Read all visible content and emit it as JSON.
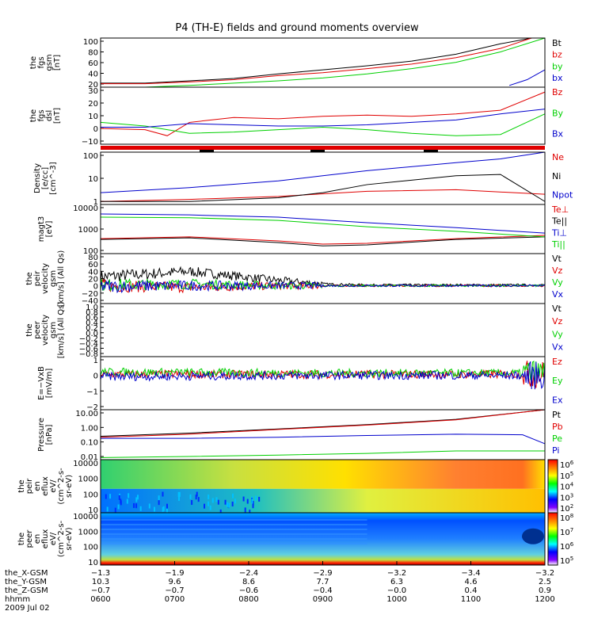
{
  "title": "P4 (TH-E) fields and ground moments overview",
  "colors": {
    "black": "#000000",
    "red": "#e00000",
    "green": "#00d000",
    "blue": "#0000cc"
  },
  "chart_data": [
    {
      "type": "line",
      "id": "fgs_gsm",
      "ylabel": [
        "the",
        "fgs",
        "gsm",
        "[nT]"
      ],
      "yticks": [
        "100",
        "80",
        "60",
        "40",
        "20"
      ],
      "ylim": [
        15,
        100
      ],
      "series": [
        {
          "name": "Bt",
          "color": "black",
          "x": [
            0,
            0.1,
            0.2,
            0.3,
            0.4,
            0.5,
            0.6,
            0.7,
            0.8,
            0.9,
            0.97,
            1
          ],
          "y": [
            22,
            22,
            26,
            30,
            38,
            45,
            52,
            60,
            72,
            90,
            100,
            100
          ]
        },
        {
          "name": "bz",
          "color": "red",
          "x": [
            0,
            0.1,
            0.2,
            0.3,
            0.4,
            0.5,
            0.6,
            0.7,
            0.8,
            0.9,
            0.97,
            1
          ],
          "y": [
            21,
            21,
            24,
            28,
            35,
            40,
            47,
            55,
            66,
            82,
            100,
            100
          ]
        },
        {
          "name": "by",
          "color": "green",
          "x": [
            0,
            0.1,
            0.2,
            0.3,
            0.4,
            0.5,
            0.6,
            0.7,
            0.8,
            0.9,
            1
          ],
          "y": [
            15,
            15,
            18,
            22,
            26,
            31,
            38,
            47,
            58,
            76,
            100
          ]
        },
        {
          "name": "bx",
          "color": "blue",
          "x": [
            0.92,
            0.96,
            1
          ],
          "y": [
            18,
            28,
            45
          ]
        }
      ]
    },
    {
      "type": "line",
      "id": "fgs_dsl",
      "ylabel": [
        "the",
        "fgs",
        "dsl",
        "[nT]"
      ],
      "yticks": [
        "30",
        "20",
        "10",
        "0",
        "−10"
      ],
      "ylim": [
        -15,
        32
      ],
      "series": [
        {
          "name": "Bz",
          "color": "red",
          "x": [
            0,
            0.1,
            0.15,
            0.2,
            0.3,
            0.4,
            0.5,
            0.6,
            0.7,
            0.8,
            0.9,
            1
          ],
          "y": [
            -2,
            -3,
            -8,
            3,
            7,
            6,
            8,
            9,
            8,
            10,
            13,
            28
          ]
        },
        {
          "name": "By",
          "color": "green",
          "x": [
            0,
            0.1,
            0.2,
            0.3,
            0.4,
            0.5,
            0.6,
            0.7,
            0.8,
            0.9,
            1
          ],
          "y": [
            3,
            0,
            -6,
            -5,
            -3,
            -1,
            -3,
            -6,
            -8,
            -7,
            10
          ]
        },
        {
          "name": "Bx",
          "color": "blue",
          "x": [
            0,
            0.1,
            0.2,
            0.3,
            0.4,
            0.5,
            0.6,
            0.7,
            0.8,
            0.9,
            1
          ],
          "y": [
            -1,
            -1,
            2,
            1,
            0,
            0,
            1,
            3,
            5,
            10,
            14
          ]
        }
      ]
    },
    {
      "type": "line",
      "id": "density",
      "ylabel": [
        "Density",
        "[e/cc]",
        "[cm^-3]"
      ],
      "yticks": [
        "100",
        "10",
        "1"
      ],
      "log": true,
      "ylim": [
        0.2,
        250
      ],
      "series": [
        {
          "name": "Ne",
          "color": "red",
          "x": [
            0,
            0.2,
            0.4,
            0.6,
            0.8,
            1
          ],
          "y": [
            0.3,
            0.4,
            0.6,
            1.2,
            1.5,
            0.8
          ]
        },
        {
          "name": "Ni",
          "color": "black",
          "x": [
            0,
            0.2,
            0.4,
            0.5,
            0.6,
            0.8,
            0.9,
            1
          ],
          "y": [
            0.3,
            0.3,
            0.5,
            1,
            3,
            10,
            12,
            0.3
          ]
        },
        {
          "name": "Npot",
          "color": "blue",
          "x": [
            0,
            0.2,
            0.4,
            0.5,
            0.6,
            0.8,
            0.9,
            1
          ],
          "y": [
            1,
            2,
            5,
            10,
            20,
            60,
            100,
            250
          ]
        }
      ]
    },
    {
      "type": "line",
      "id": "magt3",
      "ylabel": [
        "magt3",
        "[eV]"
      ],
      "yticks": [
        "10000",
        "1000",
        "100"
      ],
      "log": true,
      "ylim": [
        30,
        15000
      ],
      "series": [
        {
          "name": "Te⊥",
          "color": "red",
          "x": [
            0,
            0.2,
            0.4,
            0.5,
            0.6,
            0.8,
            1
          ],
          "y": [
            200,
            250,
            150,
            100,
            110,
            200,
            300
          ]
        },
        {
          "name": "Te||",
          "color": "black",
          "x": [
            0,
            0.2,
            0.4,
            0.5,
            0.6,
            0.8,
            1
          ],
          "y": [
            180,
            220,
            120,
            80,
            90,
            180,
            250
          ]
        },
        {
          "name": "Ti⊥",
          "color": "blue",
          "x": [
            0,
            0.2,
            0.4,
            0.6,
            0.8,
            1
          ],
          "y": [
            4500,
            4000,
            3000,
            1500,
            800,
            400
          ]
        },
        {
          "name": "Ti||",
          "color": "green",
          "x": [
            0,
            0.2,
            0.4,
            0.6,
            0.8,
            1
          ],
          "y": [
            3000,
            2800,
            2000,
            900,
            500,
            250
          ]
        }
      ]
    },
    {
      "type": "line",
      "id": "peir_velocity",
      "ylabel": [
        "the",
        "peir",
        "velocity",
        "gsm",
        "[km/s] (All Qs)"
      ],
      "yticks": [
        "80",
        "60",
        "40",
        "20",
        "0",
        "−20",
        "−40"
      ],
      "ylim": [
        -50,
        90
      ],
      "series": [
        {
          "name": "Vt",
          "color": "black",
          "x": [
            0,
            0.2,
            0.4,
            0.5,
            0.6,
            1
          ],
          "y": [
            25,
            40,
            15,
            5,
            2,
            2
          ]
        },
        {
          "name": "Vz",
          "color": "red",
          "x": [
            0,
            0.2,
            0.4,
            1
          ],
          "y": [
            0,
            -5,
            0,
            0
          ]
        },
        {
          "name": "Vy",
          "color": "green",
          "x": [
            0,
            0.2,
            0.4,
            1
          ],
          "y": [
            2,
            5,
            0,
            0
          ]
        },
        {
          "name": "Vx",
          "color": "blue",
          "x": [
            0,
            0.2,
            0.4,
            1
          ],
          "y": [
            -2,
            0,
            0,
            0
          ]
        }
      ]
    },
    {
      "type": "line",
      "id": "peer_velocity",
      "ylabel": [
        "the",
        "peer",
        "velocity",
        "gsm",
        "[km/s] (All Qs)"
      ],
      "yticks": [
        "1.0",
        "0.8",
        "0.6",
        "0.4",
        "0.2",
        "0.0",
        "−0.2",
        "−0.4",
        "−0.6",
        "−0.8"
      ],
      "ylim": [
        -1,
        1
      ],
      "series": [
        {
          "name": "Vt",
          "color": "black",
          "x": [],
          "y": []
        },
        {
          "name": "Vz",
          "color": "red",
          "x": [],
          "y": []
        },
        {
          "name": "Vy",
          "color": "green",
          "x": [],
          "y": []
        },
        {
          "name": "Vx",
          "color": "blue",
          "x": [],
          "y": []
        }
      ]
    },
    {
      "type": "line",
      "id": "efield",
      "ylabel": [
        "E=−VxB",
        "[mV/m]"
      ],
      "yticks": [
        "1",
        "0",
        "−1",
        "−2"
      ],
      "ylim": [
        -3,
        1.5
      ],
      "series": [
        {
          "name": "Ez",
          "color": "red",
          "x": [
            0,
            0.5,
            1
          ],
          "y": [
            0,
            0,
            0
          ]
        },
        {
          "name": "Ey",
          "color": "green",
          "x": [
            0,
            0.5,
            1
          ],
          "y": [
            0.2,
            0.1,
            0.1
          ]
        },
        {
          "name": "Ex",
          "color": "blue",
          "x": [
            0,
            0.5,
            1
          ],
          "y": [
            -0.2,
            -0.1,
            -0.1
          ]
        }
      ]
    },
    {
      "type": "line",
      "id": "pressure",
      "ylabel": [
        "Pressure",
        "[nPa]"
      ],
      "yticks": [
        "10.00",
        "1.00",
        "0.10",
        "0.01"
      ],
      "log": true,
      "ylim": [
        0.007,
        30
      ],
      "series": [
        {
          "name": "Pt",
          "color": "black",
          "x": [
            0,
            0.2,
            0.4,
            0.6,
            0.8,
            1
          ],
          "y": [
            0.35,
            0.6,
            1.2,
            2.5,
            6,
            30
          ]
        },
        {
          "name": "Pb",
          "color": "red",
          "x": [
            0,
            0.2,
            0.4,
            0.6,
            0.8,
            1
          ],
          "y": [
            0.3,
            0.5,
            1.1,
            2.3,
            5.5,
            30
          ]
        },
        {
          "name": "Pe",
          "color": "green",
          "x": [
            0,
            0.2,
            0.4,
            0.6,
            0.8,
            1
          ],
          "y": [
            0.01,
            0.012,
            0.015,
            0.02,
            0.03,
            0.03
          ]
        },
        {
          "name": "Pi",
          "color": "blue",
          "x": [
            0,
            0.2,
            0.4,
            0.6,
            0.8,
            0.95,
            1
          ],
          "y": [
            0.25,
            0.25,
            0.3,
            0.4,
            0.5,
            0.45,
            0.1
          ]
        }
      ]
    },
    {
      "type": "heatmap",
      "id": "peir_spec",
      "ylabel": [
        "the",
        "peir",
        "en",
        "eflux",
        "eV/",
        "(cm^2-s-",
        "sr-eV)"
      ],
      "yticks": [
        "10000",
        "1000",
        "100",
        "10"
      ],
      "colorbar": [
        "10^6",
        "10^5",
        "10^4",
        "10^3",
        "10^2"
      ]
    },
    {
      "type": "heatmap",
      "id": "peer_spec",
      "ylabel": [
        "the",
        "peer",
        "en",
        "eflux",
        "eV/",
        "(cm^2-s-",
        "sr-eV)"
      ],
      "yticks": [
        "10000",
        "1000",
        "100",
        "10"
      ],
      "colorbar": [
        "10^8",
        "10^7",
        "10^6",
        "10^5"
      ]
    }
  ],
  "xaxis": {
    "rows": [
      {
        "label": "the_X-GSM",
        "values": [
          "−1.3",
          "−1.9",
          "−2.4",
          "−2.9",
          "−3.2",
          "−3.4",
          "−3.2"
        ]
      },
      {
        "label": "the_Y-GSM",
        "values": [
          "10.3",
          "9.6",
          "8.6",
          "7.7",
          "6.3",
          "4.6",
          "2.5"
        ]
      },
      {
        "label": "the_Z-GSM",
        "values": [
          "−0.7",
          "−0.7",
          "−0.6",
          "−0.4",
          "−0.0",
          "0.4",
          "0.9"
        ]
      },
      {
        "label": "hhmm",
        "values": [
          "0600",
          "0700",
          "0800",
          "0900",
          "1000",
          "1100",
          "1200"
        ]
      }
    ],
    "date": "2009 Jul 02"
  }
}
